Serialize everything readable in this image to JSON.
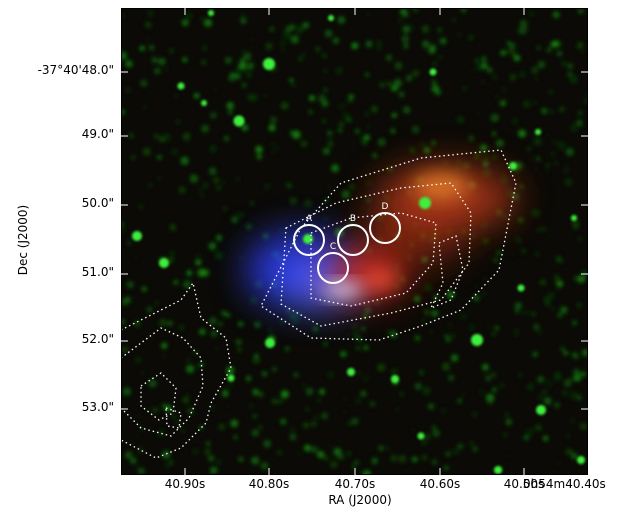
{
  "figure": {
    "xlabel": "RA (J2000)",
    "ylabel": "Dec (J2000)",
    "xticks": [
      "40.90s",
      "40.80s",
      "40.70s",
      "40.60s",
      "40.50s",
      "0h54m40.40s"
    ],
    "yticks": [
      "-37°40'48.0\"",
      "49.0\"",
      "50.0\"",
      "51.0\"",
      "52.0\"",
      "53.0\""
    ]
  },
  "markers": [
    {
      "label": "A"
    },
    {
      "label": "B"
    },
    {
      "label": "C"
    },
    {
      "label": "D"
    }
  ],
  "colors": {
    "background": "#0b0a06",
    "green_stars": "#3cf03c",
    "red_emission": "#e0402a",
    "blue_emission": "#3a4cff",
    "contours": "#ffffff",
    "circles": "#ffffff"
  }
}
